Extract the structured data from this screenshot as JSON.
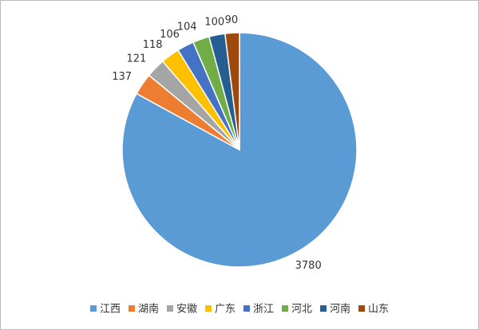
{
  "chart_data": {
    "type": "pie",
    "categories": [
      "江西",
      "湖南",
      "安徽",
      "广东",
      "浙江",
      "河北",
      "河南",
      "山东"
    ],
    "values": [
      3780,
      137,
      121,
      118,
      106,
      104,
      100,
      90
    ],
    "colors": [
      "#5b9bd5",
      "#ed7d31",
      "#a5a5a5",
      "#ffc000",
      "#4472c4",
      "#70ad47",
      "#255e91",
      "#9e480e"
    ],
    "legend": "bottom"
  }
}
